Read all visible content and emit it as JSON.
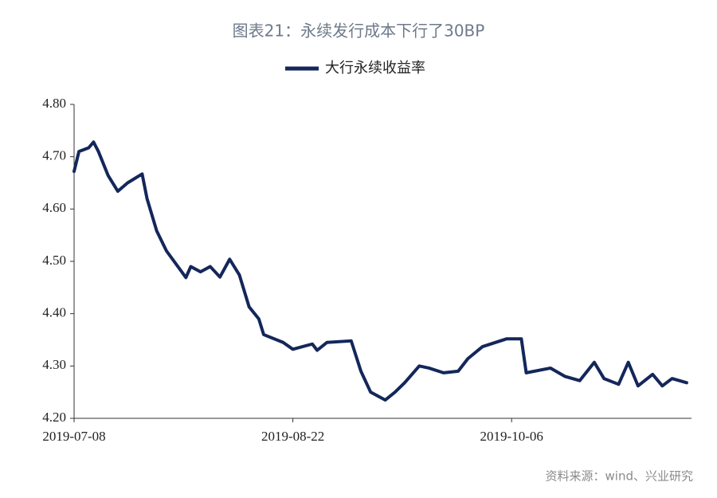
{
  "chart_data": {
    "type": "line",
    "title": "图表21：永续发行成本下行了30BP",
    "source": "资料来源：wind、兴业研究",
    "legend": "top",
    "x": [
      "2019-07-08",
      "2019-07-09",
      "2019-07-11",
      "2019-07-12",
      "2019-07-13",
      "2019-07-15",
      "2019-07-17",
      "2019-07-19",
      "2019-07-22",
      "2019-07-23",
      "2019-07-25",
      "2019-07-27",
      "2019-07-31",
      "2019-08-01",
      "2019-08-03",
      "2019-08-05",
      "2019-08-07",
      "2019-08-09",
      "2019-08-11",
      "2019-08-13",
      "2019-08-15",
      "2019-08-16",
      "2019-08-20",
      "2019-08-22",
      "2019-08-26",
      "2019-08-27",
      "2019-08-29",
      "2019-09-03",
      "2019-09-05",
      "2019-09-07",
      "2019-09-10",
      "2019-09-12",
      "2019-09-14",
      "2019-09-17",
      "2019-09-19",
      "2019-09-22",
      "2019-09-25",
      "2019-09-27",
      "2019-09-30",
      "2019-10-05",
      "2019-10-08",
      "2019-10-09",
      "2019-10-14",
      "2019-10-17",
      "2019-10-20",
      "2019-10-23",
      "2019-10-25",
      "2019-10-28",
      "2019-10-30",
      "2019-11-01",
      "2019-11-04",
      "2019-11-06",
      "2019-11-08",
      "2019-11-11"
    ],
    "series": [
      {
        "name": "大行永续收益率",
        "color": "#14275a",
        "values": [
          4.672,
          4.71,
          4.717,
          4.728,
          4.71,
          4.664,
          4.634,
          4.65,
          4.667,
          4.62,
          4.558,
          4.52,
          4.469,
          4.49,
          4.48,
          4.49,
          4.47,
          4.504,
          4.474,
          4.413,
          4.39,
          4.36,
          4.345,
          4.332,
          4.342,
          4.33,
          4.345,
          4.348,
          4.29,
          4.25,
          4.235,
          4.25,
          4.268,
          4.3,
          4.296,
          4.287,
          4.29,
          4.314,
          4.337,
          4.352,
          4.352,
          4.287,
          4.296,
          4.28,
          4.272,
          4.307,
          4.276,
          4.265,
          4.307,
          4.262,
          4.284,
          4.262,
          4.276,
          4.268
        ]
      }
    ],
    "xlim": [
      "2019-07-08",
      "2019-11-12"
    ],
    "xticks": [
      "2019-07-08",
      "2019-08-22",
      "2019-10-06"
    ],
    "ylim": [
      4.2,
      4.8
    ],
    "yticks": [
      {
        "value": 4.2,
        "label": "4.20"
      },
      {
        "value": 4.3,
        "label": "4.30"
      },
      {
        "value": 4.4,
        "label": "4.40"
      },
      {
        "value": 4.5,
        "label": "4.50"
      },
      {
        "value": 4.6,
        "label": "4.60"
      },
      {
        "value": 4.7,
        "label": "4.70"
      },
      {
        "value": 4.8,
        "label": "4.80"
      }
    ],
    "grid": false
  }
}
